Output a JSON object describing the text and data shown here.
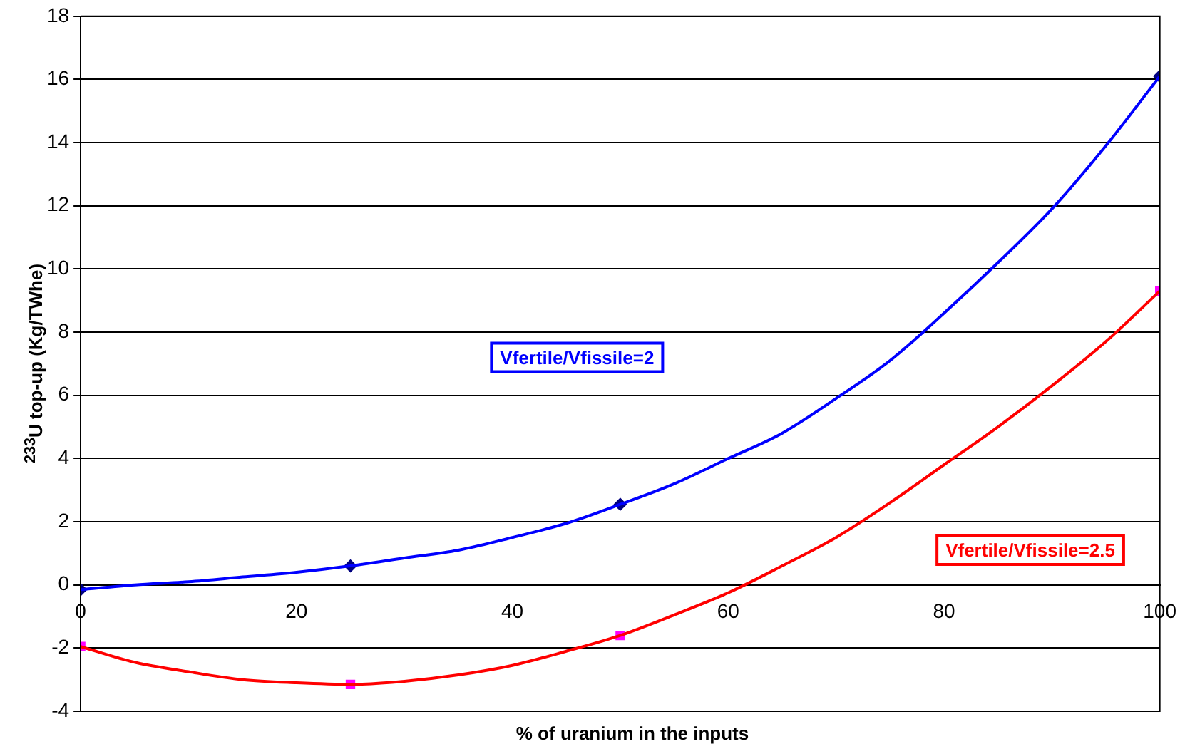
{
  "chart_data": {
    "type": "line",
    "xlabel": "% of uranium in the inputs",
    "ylabel": "$^{233}$U top-up (Kg/TWhe)",
    "xlim": [
      0,
      100
    ],
    "xticks": [
      0,
      20,
      40,
      60,
      80,
      100
    ],
    "ylim": [
      -4,
      18
    ],
    "yticks": [
      -4,
      -2,
      0,
      2,
      4,
      6,
      8,
      10,
      12,
      14,
      16,
      18
    ],
    "grid": "y",
    "legend": false,
    "line_style": "solid",
    "series": [
      {
        "name": "Vfertile/Vfissile=2",
        "type": "line",
        "color": "#0000ff",
        "marker": "none",
        "x": [
          0,
          5,
          10,
          15,
          20,
          25,
          30,
          35,
          40,
          45,
          50,
          55,
          60,
          65,
          70,
          75,
          80,
          85,
          90,
          95,
          100
        ],
        "values": [
          -0.15,
          0,
          0.1,
          0.25,
          0.4,
          0.6,
          0.85,
          1.1,
          1.5,
          1.95,
          2.55,
          3.2,
          4.0,
          4.8,
          5.9,
          7.1,
          8.6,
          10.2,
          11.9,
          13.9,
          16.1
        ]
      },
      {
        "name": "Vfertile/Vfissile=2.5",
        "type": "line",
        "color": "#ff0000",
        "marker": "none",
        "x": [
          0,
          5,
          10,
          15,
          20,
          25,
          30,
          35,
          40,
          45,
          50,
          55,
          60,
          65,
          70,
          75,
          80,
          85,
          90,
          95,
          100
        ],
        "values": [
          -1.95,
          -2.45,
          -2.75,
          -3.0,
          -3.1,
          -3.15,
          -3.05,
          -2.85,
          -2.55,
          -2.1,
          -1.6,
          -0.95,
          -0.25,
          0.6,
          1.5,
          2.6,
          3.8,
          5.0,
          6.3,
          7.7,
          9.3
        ]
      },
      {
        "type": "scatter",
        "color": "#000080",
        "marker": "diamond",
        "x": [
          0,
          25,
          50,
          100
        ],
        "values": [
          -0.15,
          0.6,
          2.55,
          16.1
        ]
      },
      {
        "type": "scatter",
        "color": "#ff00ff",
        "marker": "square",
        "x": [
          0,
          25,
          50,
          100
        ],
        "values": [
          -1.95,
          -3.15,
          -1.6,
          9.3
        ]
      }
    ]
  }
}
